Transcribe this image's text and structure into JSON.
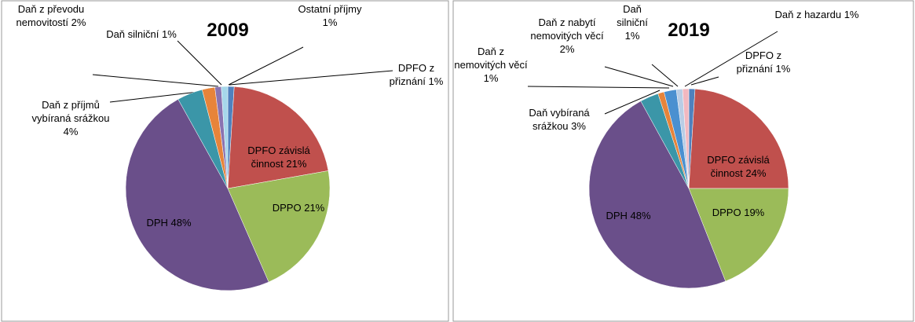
{
  "chart_data": [
    {
      "type": "pie",
      "title": "2009",
      "categories": [
        "DPFO z přiznání",
        "DPFO závislá činnost",
        "DPPO",
        "DPH",
        "Daň z příjmů vybíraná srážkou",
        "Daň z převodu nemovitostí",
        "Daň silniční",
        "Ostatní příjmy"
      ],
      "values": [
        1,
        21,
        21,
        48,
        4,
        2,
        1,
        1
      ],
      "value_labels": [
        "1%",
        "21%",
        "21%",
        "48%",
        "4%",
        "2%",
        "1%",
        "1%"
      ],
      "colors": [
        "#4f81bd",
        "#c0504d",
        "#9bbb59",
        "#6a4f8a",
        "#3b96a8",
        "#e7843a",
        "#8a73b0",
        "#a6d7ea"
      ]
    },
    {
      "type": "pie",
      "title": "2019",
      "categories": [
        "DPFO z přiznání",
        "DPFO závislá činnost",
        "DPPO",
        "DPH",
        "Daň vybíraná srážkou",
        "Daň z nemovitých věcí",
        "Daň z nabytí nemovitých věcí",
        "Daň silniční",
        "Daň z hazardu"
      ],
      "values": [
        1,
        24,
        19,
        48,
        3,
        1,
        2,
        1,
        1
      ],
      "value_labels": [
        "1%",
        "24%",
        "19%",
        "48%",
        "3%",
        "1%",
        "2%",
        "1%",
        "1%"
      ],
      "colors": [
        "#4f81bd",
        "#c0504d",
        "#9bbb59",
        "#6a4f8a",
        "#3b96a8",
        "#e7843a",
        "#4a90d0",
        "#b9cde5",
        "#f2b8c0"
      ]
    }
  ]
}
